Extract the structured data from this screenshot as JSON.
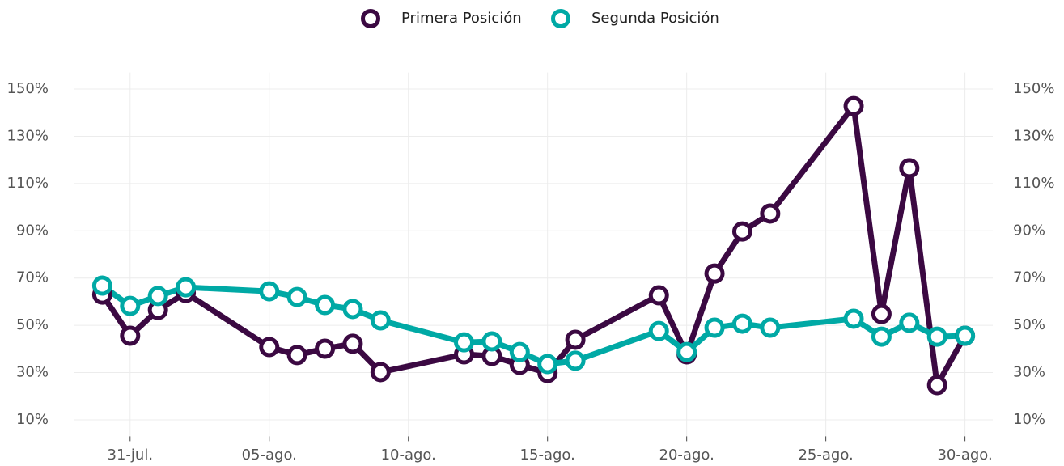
{
  "chart_data": {
    "type": "line",
    "x": [
      "07-30",
      "07-31",
      "08-01",
      "08-02",
      "08-05",
      "08-06",
      "08-07",
      "08-08",
      "08-09",
      "08-12",
      "08-13",
      "08-14",
      "08-15",
      "08-16",
      "08-19",
      "08-20",
      "08-21",
      "08-22",
      "08-23",
      "08-26",
      "08-27",
      "08-28",
      "08-29",
      "08-30"
    ],
    "series": [
      {
        "name": "Primera Posición",
        "color": "#3b0942",
        "values": [
          63.0,
          45.6,
          56.5,
          63.7,
          40.8,
          37.4,
          40.1,
          42.2,
          30.2,
          37.7,
          37.0,
          33.3,
          29.8,
          43.9,
          62.7,
          37.7,
          71.9,
          89.7,
          97.3,
          142.8,
          54.8,
          116.5,
          24.7,
          45.6
        ]
      },
      {
        "name": "Segunda Posición",
        "color": "#00a9a5",
        "values": [
          66.8,
          58.2,
          62.4,
          66.1,
          64.4,
          62.0,
          58.6,
          56.9,
          52.1,
          42.8,
          43.2,
          38.7,
          33.6,
          35.0,
          47.6,
          38.7,
          49.0,
          50.7,
          49.0,
          52.8,
          45.2,
          51.1,
          45.2,
          45.6
        ]
      }
    ],
    "xlim": [
      "07-29",
      "08-31"
    ],
    "xticks": [
      {
        "value": "07-31",
        "label": "31-jul."
      },
      {
        "value": "08-05",
        "label": "05-ago."
      },
      {
        "value": "08-10",
        "label": "10-ago."
      },
      {
        "value": "08-15",
        "label": "15-ago."
      },
      {
        "value": "08-20",
        "label": "20-ago."
      },
      {
        "value": "08-25",
        "label": "25-ago."
      },
      {
        "value": "08-30",
        "label": "30-ago."
      }
    ],
    "ylim": [
      3,
      157
    ],
    "yticks": [
      {
        "value": 10,
        "label": "10%"
      },
      {
        "value": 30,
        "label": "30%"
      },
      {
        "value": 50,
        "label": "50%"
      },
      {
        "value": 70,
        "label": "70%"
      },
      {
        "value": 90,
        "label": "90%"
      },
      {
        "value": 110,
        "label": "110%"
      },
      {
        "value": 130,
        "label": "130%"
      },
      {
        "value": 150,
        "label": "150%"
      }
    ],
    "grid": true,
    "legend": "top"
  }
}
